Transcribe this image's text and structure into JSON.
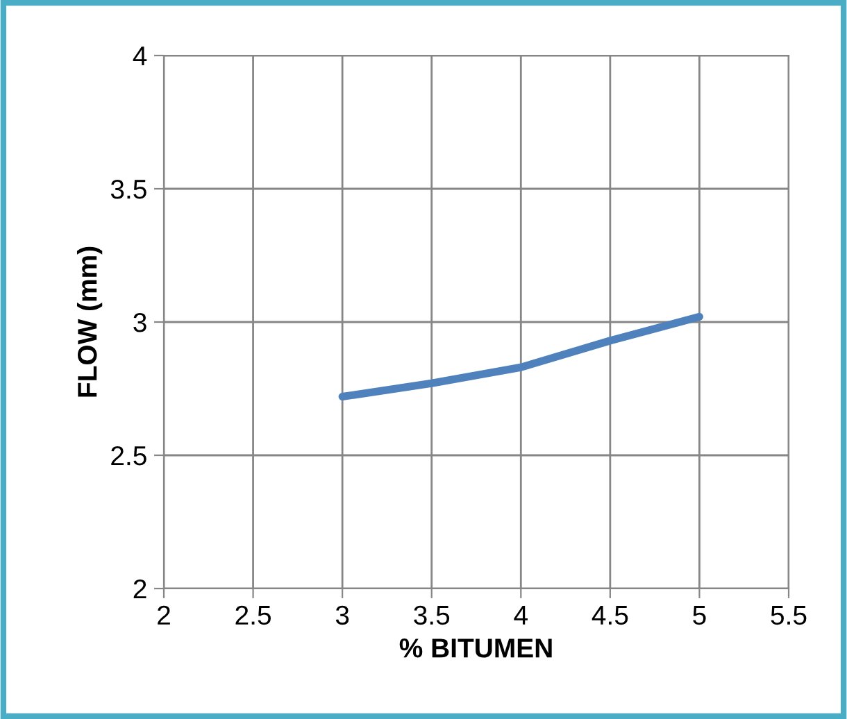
{
  "chart_data": {
    "type": "line",
    "xlabel": "% BITUMEN",
    "ylabel": "FLOW (mm)",
    "x": [
      3,
      3.5,
      4,
      4.5,
      5
    ],
    "series": [
      {
        "color": "#4f81bd",
        "values": [
          2.72,
          2.77,
          2.83,
          2.93,
          3.02
        ]
      }
    ],
    "xlim": [
      2,
      5.5
    ],
    "xticks": [
      2,
      2.5,
      3,
      3.5,
      4,
      4.5,
      5,
      5.5
    ],
    "ylim": [
      2,
      4
    ],
    "yticks": [
      2,
      2.5,
      3,
      3.5,
      4
    ],
    "grid": true,
    "marker": "none",
    "line_style": "solid"
  }
}
